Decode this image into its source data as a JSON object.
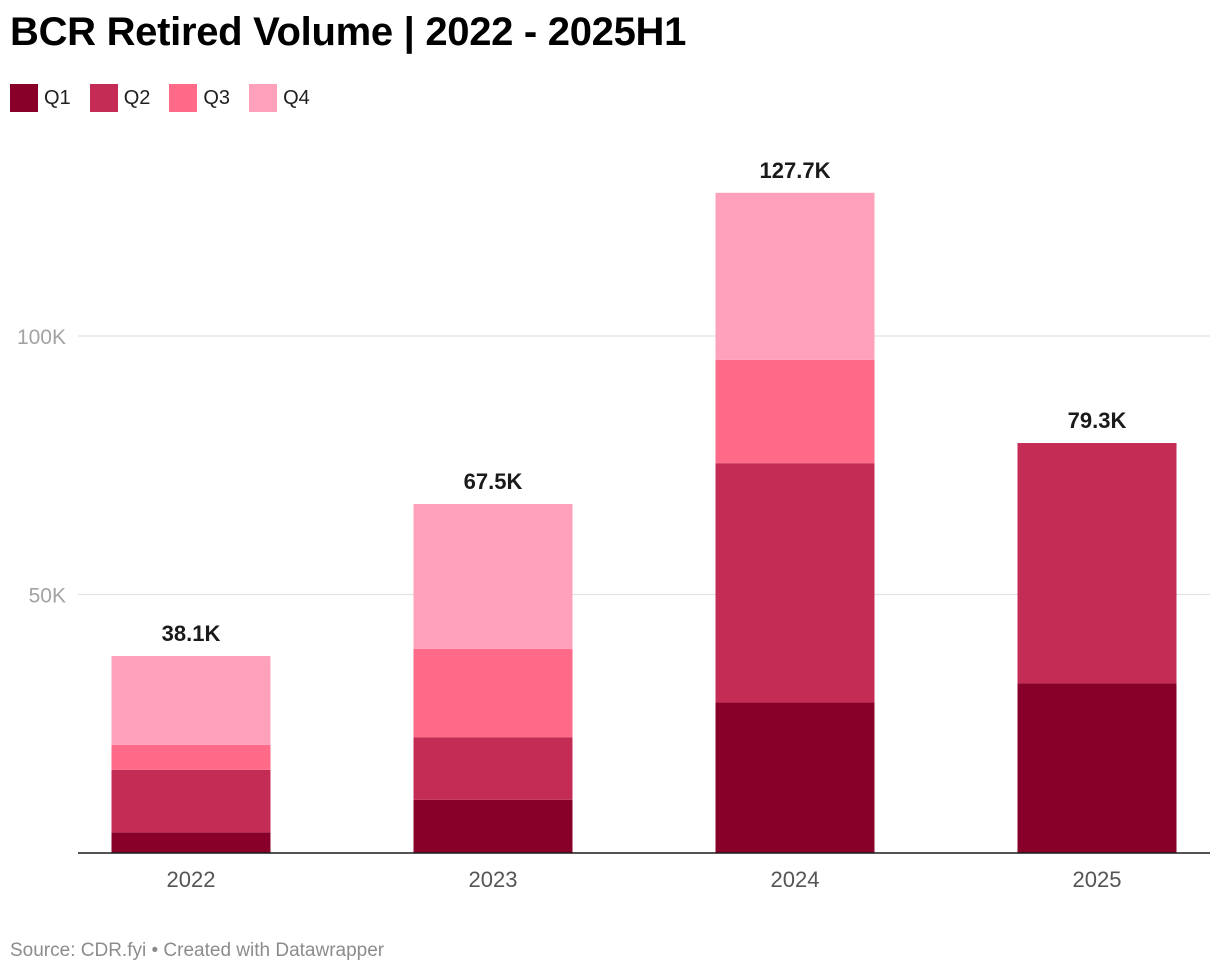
{
  "chart_data": {
    "type": "bar",
    "stacked": true,
    "title": "BCR Retired Volume | 2022 - 2025H1",
    "categories": [
      "2022",
      "2023",
      "2024",
      "2025"
    ],
    "series": [
      {
        "name": "Q1",
        "color": "#88002a",
        "values": [
          4000,
          10300,
          29100,
          32800
        ]
      },
      {
        "name": "Q2",
        "color": "#c42c55",
        "values": [
          12100,
          12100,
          46300,
          46500
        ]
      },
      {
        "name": "Q3",
        "color": "#ff6a88",
        "values": [
          4800,
          17100,
          20000,
          null
        ]
      },
      {
        "name": "Q4",
        "color": "#ffa1bb",
        "values": [
          17200,
          28000,
          32300,
          null
        ]
      }
    ],
    "totals": [
      38100,
      67500,
      127700,
      79300
    ],
    "total_labels": [
      "38.1K",
      "67.5K",
      "127.7K",
      "79.3K"
    ],
    "y_ticks": [
      {
        "value": 50000,
        "label": "50K"
      },
      {
        "value": 100000,
        "label": "100K"
      }
    ],
    "ylim": [
      0,
      135000
    ],
    "xlabel": "",
    "ylabel": "",
    "grid": true,
    "legend_position": "top-left"
  },
  "footer": {
    "source": "Source: CDR.fyi • Created with Datawrapper"
  }
}
